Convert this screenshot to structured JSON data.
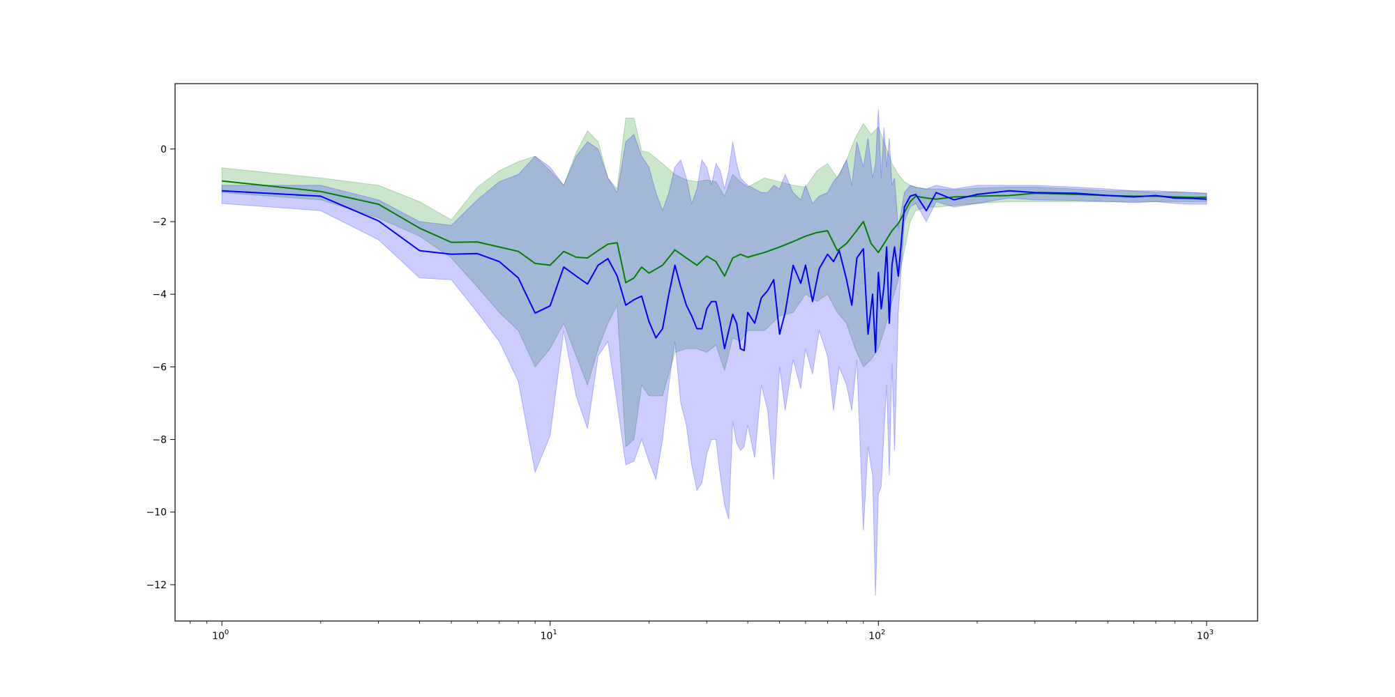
{
  "chart_data": {
    "type": "line",
    "title": "",
    "xlabel": "",
    "ylabel": "",
    "xscale": "log",
    "xlim": [
      0.72,
      1430
    ],
    "ylim": [
      -13,
      1.8
    ],
    "grid": false,
    "legend": "none",
    "x_ticks": [
      {
        "value": 1,
        "base": "10",
        "exp": "0"
      },
      {
        "value": 10,
        "base": "10",
        "exp": "1"
      },
      {
        "value": 100,
        "base": "10",
        "exp": "2"
      },
      {
        "value": 1000,
        "base": "10",
        "exp": "3"
      }
    ],
    "y_ticks": [
      {
        "value": 0,
        "label": "0"
      },
      {
        "value": -2,
        "label": "−2"
      },
      {
        "value": -4,
        "label": "−4"
      },
      {
        "value": -6,
        "label": "−6"
      },
      {
        "value": -8,
        "label": "−8"
      },
      {
        "value": -10,
        "label": "−10"
      },
      {
        "value": -12,
        "label": "−12"
      }
    ],
    "colors": {
      "green_line": "#008000",
      "green_band": "#008000",
      "blue_line": "#0000ff",
      "blue_band": "#0000ff",
      "band_opacity": 0.2
    },
    "series": [
      {
        "color": "#008000",
        "x": [
          1,
          2,
          3,
          4,
          5,
          6,
          7,
          8,
          9,
          10,
          11,
          12,
          13,
          14,
          15,
          16,
          17,
          18,
          19,
          20,
          22,
          24,
          26,
          28,
          30,
          32,
          34,
          36,
          38,
          40,
          45,
          50,
          55,
          60,
          65,
          70,
          75,
          80,
          85,
          90,
          95,
          100,
          105,
          110,
          115,
          120,
          125,
          130,
          140,
          150,
          170,
          200,
          250,
          300,
          400,
          500,
          600,
          700,
          800,
          900,
          1000
        ],
        "y": [
          -0.88,
          -1.17,
          -1.52,
          -2.18,
          -2.57,
          -2.56,
          -2.7,
          -2.82,
          -3.15,
          -3.2,
          -2.82,
          -2.98,
          -3.0,
          -2.8,
          -2.62,
          -2.58,
          -3.68,
          -3.55,
          -3.25,
          -3.42,
          -3.2,
          -2.78,
          -3.0,
          -3.2,
          -2.95,
          -3.1,
          -3.5,
          -3.0,
          -2.9,
          -2.98,
          -2.85,
          -2.7,
          -2.55,
          -2.4,
          -2.3,
          -2.25,
          -2.8,
          -2.6,
          -2.3,
          -2.0,
          -2.6,
          -2.85,
          -2.55,
          -2.25,
          -2.05,
          -1.75,
          -1.45,
          -1.3,
          -1.35,
          -1.38,
          -1.32,
          -1.3,
          -1.28,
          -1.22,
          -1.25,
          -1.28,
          -1.3,
          -1.3,
          -1.32,
          -1.33,
          -1.33
        ],
        "upper": [
          -0.52,
          -0.8,
          -1.0,
          -1.45,
          -1.95,
          -1.05,
          -0.6,
          -0.35,
          -0.2,
          -0.6,
          -1.0,
          -0.1,
          0.5,
          0.2,
          -0.8,
          -1.1,
          0.85,
          0.85,
          -0.05,
          -0.1,
          -0.4,
          -0.7,
          -0.85,
          -0.9,
          -0.85,
          -0.9,
          -1.3,
          -0.7,
          -0.9,
          -1.05,
          -0.8,
          -0.9,
          -1.0,
          -1.05,
          -0.6,
          -0.4,
          -0.8,
          -0.3,
          0.3,
          0.7,
          0.4,
          0.6,
          0.1,
          -0.4,
          -0.7,
          -0.9,
          -1.0,
          -1.05,
          -1.1,
          -1.1,
          -1.12,
          -1.08,
          -1.05,
          -1.05,
          -1.1,
          -1.15,
          -1.15,
          -1.2,
          -1.18,
          -1.2,
          -1.22
        ],
        "lower": [
          -1.2,
          -1.4,
          -1.9,
          -2.4,
          -3.0,
          -3.8,
          -4.5,
          -5.0,
          -6.0,
          -5.5,
          -4.8,
          -5.7,
          -6.5,
          -5.5,
          -4.8,
          -4.3,
          -8.2,
          -8.0,
          -6.5,
          -6.8,
          -6.8,
          -5.6,
          -5.5,
          -5.5,
          -5.6,
          -5.4,
          -6.1,
          -5.2,
          -5.3,
          -5.0,
          -5.0,
          -4.6,
          -4.5,
          -4.0,
          -4.2,
          -4.0,
          -4.5,
          -4.8,
          -5.5,
          -6.0,
          -5.8,
          -5.5,
          -4.9,
          -4.2,
          -3.6,
          -2.8,
          -2.0,
          -1.7,
          -1.6,
          -1.6,
          -1.55,
          -1.5,
          -1.45,
          -1.45,
          -1.45,
          -1.45,
          -1.45,
          -1.45,
          -1.45,
          -1.45,
          -1.45
        ]
      },
      {
        "color": "#0000ff",
        "x": [
          1,
          2,
          3,
          4,
          5,
          6,
          7,
          8,
          9,
          10,
          11,
          12,
          13,
          14,
          15,
          16,
          17,
          18,
          19,
          20,
          21,
          22,
          23,
          24,
          25,
          26,
          27,
          28,
          29,
          30,
          31,
          32,
          33,
          34,
          35,
          36,
          37,
          38,
          39,
          40,
          42,
          44,
          46,
          48,
          50,
          52,
          55,
          58,
          60,
          63,
          66,
          70,
          73,
          76,
          80,
          83,
          86,
          90,
          93,
          96,
          98,
          100,
          102,
          104,
          106,
          108,
          110,
          112,
          115,
          120,
          125,
          130,
          140,
          150,
          170,
          200,
          250,
          300,
          400,
          500,
          600,
          700,
          800,
          900,
          1000
        ],
        "y": [
          -1.15,
          -1.3,
          -1.98,
          -2.8,
          -2.9,
          -2.88,
          -3.1,
          -3.55,
          -4.52,
          -4.32,
          -3.25,
          -3.5,
          -3.72,
          -3.2,
          -3.02,
          -3.5,
          -4.3,
          -4.15,
          -4.05,
          -4.75,
          -5.2,
          -4.95,
          -4.0,
          -3.2,
          -3.8,
          -4.3,
          -4.6,
          -4.95,
          -4.95,
          -4.4,
          -4.2,
          -4.2,
          -4.8,
          -5.5,
          -5.0,
          -4.55,
          -4.8,
          -5.5,
          -5.55,
          -4.5,
          -4.8,
          -4.1,
          -3.9,
          -3.6,
          -5.1,
          -4.5,
          -3.2,
          -3.7,
          -3.2,
          -4.2,
          -3.3,
          -2.9,
          -3.1,
          -2.8,
          -3.6,
          -4.3,
          -3.0,
          -2.75,
          -5.1,
          -4.0,
          -5.6,
          -3.4,
          -4.4,
          -3.8,
          -2.7,
          -4.8,
          -3.2,
          -2.7,
          -3.5,
          -1.6,
          -1.3,
          -1.25,
          -1.7,
          -1.2,
          -1.4,
          -1.25,
          -1.15,
          -1.2,
          -1.22,
          -1.28,
          -1.32,
          -1.28,
          -1.35,
          -1.36,
          -1.38
        ],
        "upper": [
          -1.0,
          -1.0,
          -1.4,
          -2.0,
          -2.1,
          -1.4,
          -0.9,
          -0.7,
          -0.2,
          -0.5,
          -1.0,
          -0.2,
          0.2,
          0.0,
          -0.8,
          -1.2,
          0.2,
          0.4,
          -0.2,
          -0.5,
          -1.2,
          -1.7,
          -1.2,
          -0.5,
          -0.3,
          -0.8,
          -1.5,
          -1.1,
          -0.3,
          -0.5,
          -1.0,
          -0.4,
          -0.6,
          -1.1,
          -0.6,
          0.2,
          -0.4,
          -0.8,
          -0.9,
          -1.0,
          -1.1,
          -1.2,
          -1.2,
          -1.0,
          -1.1,
          -0.7,
          -1.2,
          -1.4,
          -1.0,
          -1.5,
          -1.3,
          -1.2,
          -0.9,
          -0.7,
          -0.3,
          -1.0,
          0.2,
          -0.5,
          0.3,
          -0.8,
          -0.4,
          1.1,
          -0.8,
          0.6,
          -0.5,
          0.3,
          -1.0,
          -0.8,
          -2.2,
          -1.2,
          -1.0,
          -1.05,
          -1.1,
          -1.0,
          -1.1,
          -1.0,
          -1.0,
          -1.0,
          -1.05,
          -1.1,
          -1.15,
          -1.15,
          -1.18,
          -1.2,
          -1.22
        ],
        "lower": [
          -1.5,
          -1.7,
          -2.5,
          -3.55,
          -3.6,
          -4.5,
          -5.3,
          -6.4,
          -8.9,
          -7.9,
          -5.0,
          -6.8,
          -7.7,
          -5.7,
          -5.3,
          -7.0,
          -8.7,
          -8.6,
          -8.0,
          -8.6,
          -9.1,
          -8.0,
          -6.5,
          -5.3,
          -7.0,
          -7.6,
          -8.7,
          -9.4,
          -9.2,
          -8.4,
          -8.0,
          -8.0,
          -9.0,
          -9.8,
          -10.2,
          -7.5,
          -8.1,
          -8.3,
          -8.2,
          -7.6,
          -8.5,
          -6.5,
          -7.2,
          -9.1,
          -6.0,
          -7.2,
          -5.8,
          -6.6,
          -5.5,
          -6.2,
          -5.0,
          -5.7,
          -7.2,
          -6.0,
          -6.5,
          -7.2,
          -5.8,
          -10.5,
          -8.2,
          -9.0,
          -12.3,
          -9.5,
          -9.3,
          -7.8,
          -6.5,
          -9.0,
          -5.9,
          -8.3,
          -4.5,
          -2.0,
          -1.6,
          -1.5,
          -2.0,
          -1.45,
          -1.6,
          -1.5,
          -1.35,
          -1.4,
          -1.42,
          -1.45,
          -1.48,
          -1.45,
          -1.5,
          -1.52,
          -1.52
        ]
      }
    ]
  }
}
